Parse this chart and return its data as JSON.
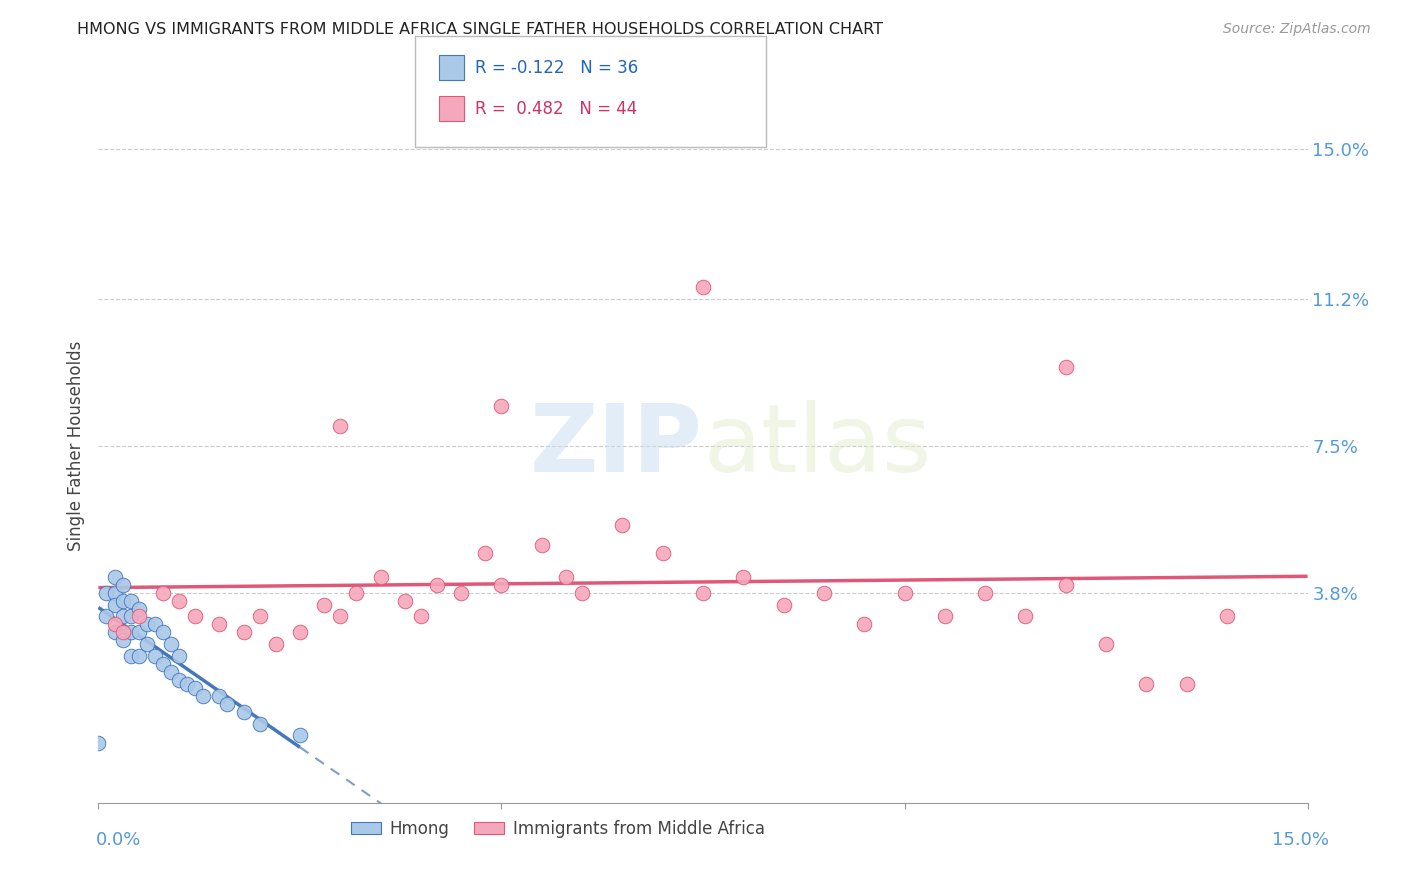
{
  "title": "HMONG VS IMMIGRANTS FROM MIDDLE AFRICA SINGLE FATHER HOUSEHOLDS CORRELATION CHART",
  "source": "Source: ZipAtlas.com",
  "ylabel": "Single Father Households",
  "ylabel_tick_vals": [
    0.15,
    0.112,
    0.075,
    0.038
  ],
  "ylabel_tick_labels": [
    "15.0%",
    "11.2%",
    "7.5%",
    "3.8%"
  ],
  "xtick_vals": [
    0.0,
    0.05,
    0.1,
    0.15
  ],
  "xmin": 0.0,
  "xmax": 0.15,
  "ymin": -0.015,
  "ymax": 0.165,
  "legend_hmong_r": "-0.122",
  "legend_hmong_n": "36",
  "legend_africa_r": "0.482",
  "legend_africa_n": "44",
  "hmong_color": "#aac8e8",
  "africa_color": "#f5a8bc",
  "trendline_hmong_color": "#4477bb",
  "trendline_africa_color": "#e05878",
  "watermark_zip": "ZIP",
  "watermark_atlas": "atlas",
  "hmong_x": [
    0.0,
    0.001,
    0.001,
    0.002,
    0.002,
    0.002,
    0.002,
    0.003,
    0.003,
    0.003,
    0.003,
    0.004,
    0.004,
    0.004,
    0.004,
    0.005,
    0.005,
    0.005,
    0.006,
    0.006,
    0.007,
    0.007,
    0.008,
    0.008,
    0.009,
    0.009,
    0.01,
    0.01,
    0.011,
    0.012,
    0.013,
    0.015,
    0.016,
    0.018,
    0.02,
    0.025
  ],
  "hmong_y": [
    0.0,
    0.038,
    0.032,
    0.042,
    0.038,
    0.035,
    0.028,
    0.04,
    0.036,
    0.032,
    0.026,
    0.036,
    0.032,
    0.028,
    0.022,
    0.034,
    0.028,
    0.022,
    0.03,
    0.025,
    0.03,
    0.022,
    0.028,
    0.02,
    0.025,
    0.018,
    0.022,
    0.016,
    0.015,
    0.014,
    0.012,
    0.012,
    0.01,
    0.008,
    0.005,
    0.002
  ],
  "africa_x": [
    0.002,
    0.003,
    0.005,
    0.008,
    0.01,
    0.012,
    0.015,
    0.018,
    0.02,
    0.022,
    0.025,
    0.028,
    0.03,
    0.032,
    0.035,
    0.038,
    0.04,
    0.042,
    0.045,
    0.048,
    0.05,
    0.055,
    0.058,
    0.06,
    0.065,
    0.07,
    0.075,
    0.08,
    0.085,
    0.09,
    0.095,
    0.1,
    0.105,
    0.11,
    0.115,
    0.12,
    0.125,
    0.13,
    0.135,
    0.14,
    0.075,
    0.05,
    0.03,
    0.12
  ],
  "africa_y": [
    0.03,
    0.028,
    0.032,
    0.038,
    0.036,
    0.032,
    0.03,
    0.028,
    0.032,
    0.025,
    0.028,
    0.035,
    0.032,
    0.038,
    0.042,
    0.036,
    0.032,
    0.04,
    0.038,
    0.048,
    0.04,
    0.05,
    0.042,
    0.038,
    0.055,
    0.048,
    0.038,
    0.042,
    0.035,
    0.038,
    0.03,
    0.038,
    0.032,
    0.038,
    0.032,
    0.04,
    0.025,
    0.015,
    0.015,
    0.032,
    0.115,
    0.085,
    0.08,
    0.095
  ]
}
